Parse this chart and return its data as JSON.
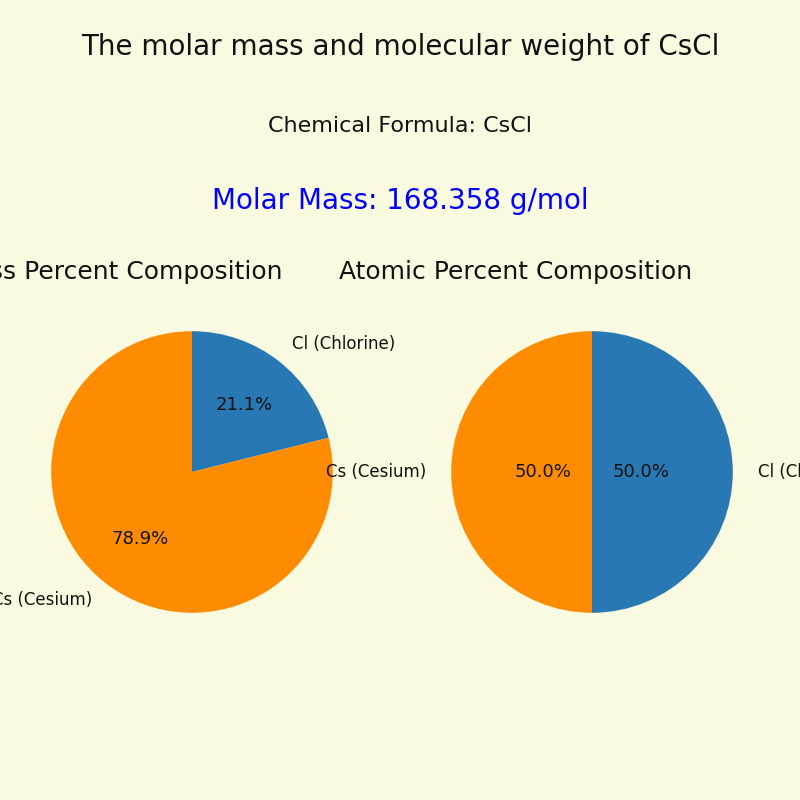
{
  "title": "The molar mass and molecular weight of CsCl",
  "chemical_formula_label": "Chemical Formula: CsCl",
  "molar_mass_label": "Molar Mass: 168.358 g/mol",
  "background_color": "#FAFAE0",
  "title_fontsize": 20,
  "formula_fontsize": 16,
  "molar_mass_fontsize": 20,
  "molar_mass_color": "blue",
  "text_color": "#111111",
  "pie_title_fontsize": 18,
  "pie_label_fontsize": 12,
  "pie_autopct_fontsize": 13,
  "mass_composition_title": "Mass Percent Composition",
  "atomic_composition_title": "Atomic Percent Composition",
  "mass_values": [
    21.1,
    78.9
  ],
  "atomic_values": [
    50.0,
    50.0
  ],
  "label_cl": "Cl (Chlorine)",
  "label_cs": "Cs (Cesium)",
  "color_cl": "#2878B4",
  "color_cs": "#FF8C00",
  "startangle_mass": 90,
  "startangle_atomic": 90
}
